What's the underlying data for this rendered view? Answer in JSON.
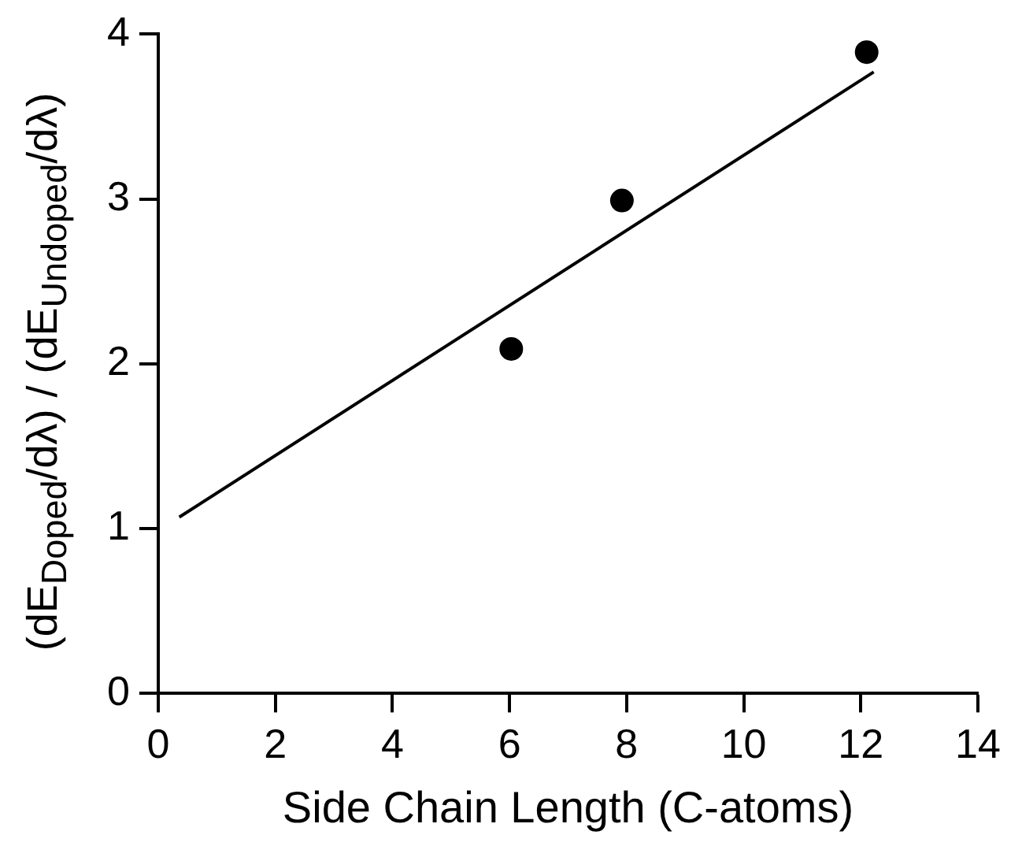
{
  "chart_data": {
    "type": "scatter",
    "xlabel": "Side Chain Length (C-atoms)",
    "ylabel": "(dE$_{Doped}$/dλ) / (dE$_{Undoped}$/dλ)",
    "xlim": [
      0,
      14
    ],
    "xticks": [
      0,
      2,
      4,
      6,
      8,
      10,
      12,
      14
    ],
    "ylim": [
      0,
      4
    ],
    "yticks": [
      0,
      1,
      2,
      3,
      4
    ],
    "grid": false,
    "legend": false,
    "marker": "circle",
    "series": [
      {
        "type": "scatter",
        "color": "#000000",
        "x": [
          6.03,
          7.92,
          12.1
        ],
        "values": [
          2.09,
          2.99,
          3.89
        ]
      },
      {
        "type": "line",
        "color": "#000000",
        "marker": "none",
        "line_style": "solid",
        "x": [
          0.36,
          12.22
        ],
        "values": [
          1.07,
          3.77
        ]
      }
    ]
  }
}
